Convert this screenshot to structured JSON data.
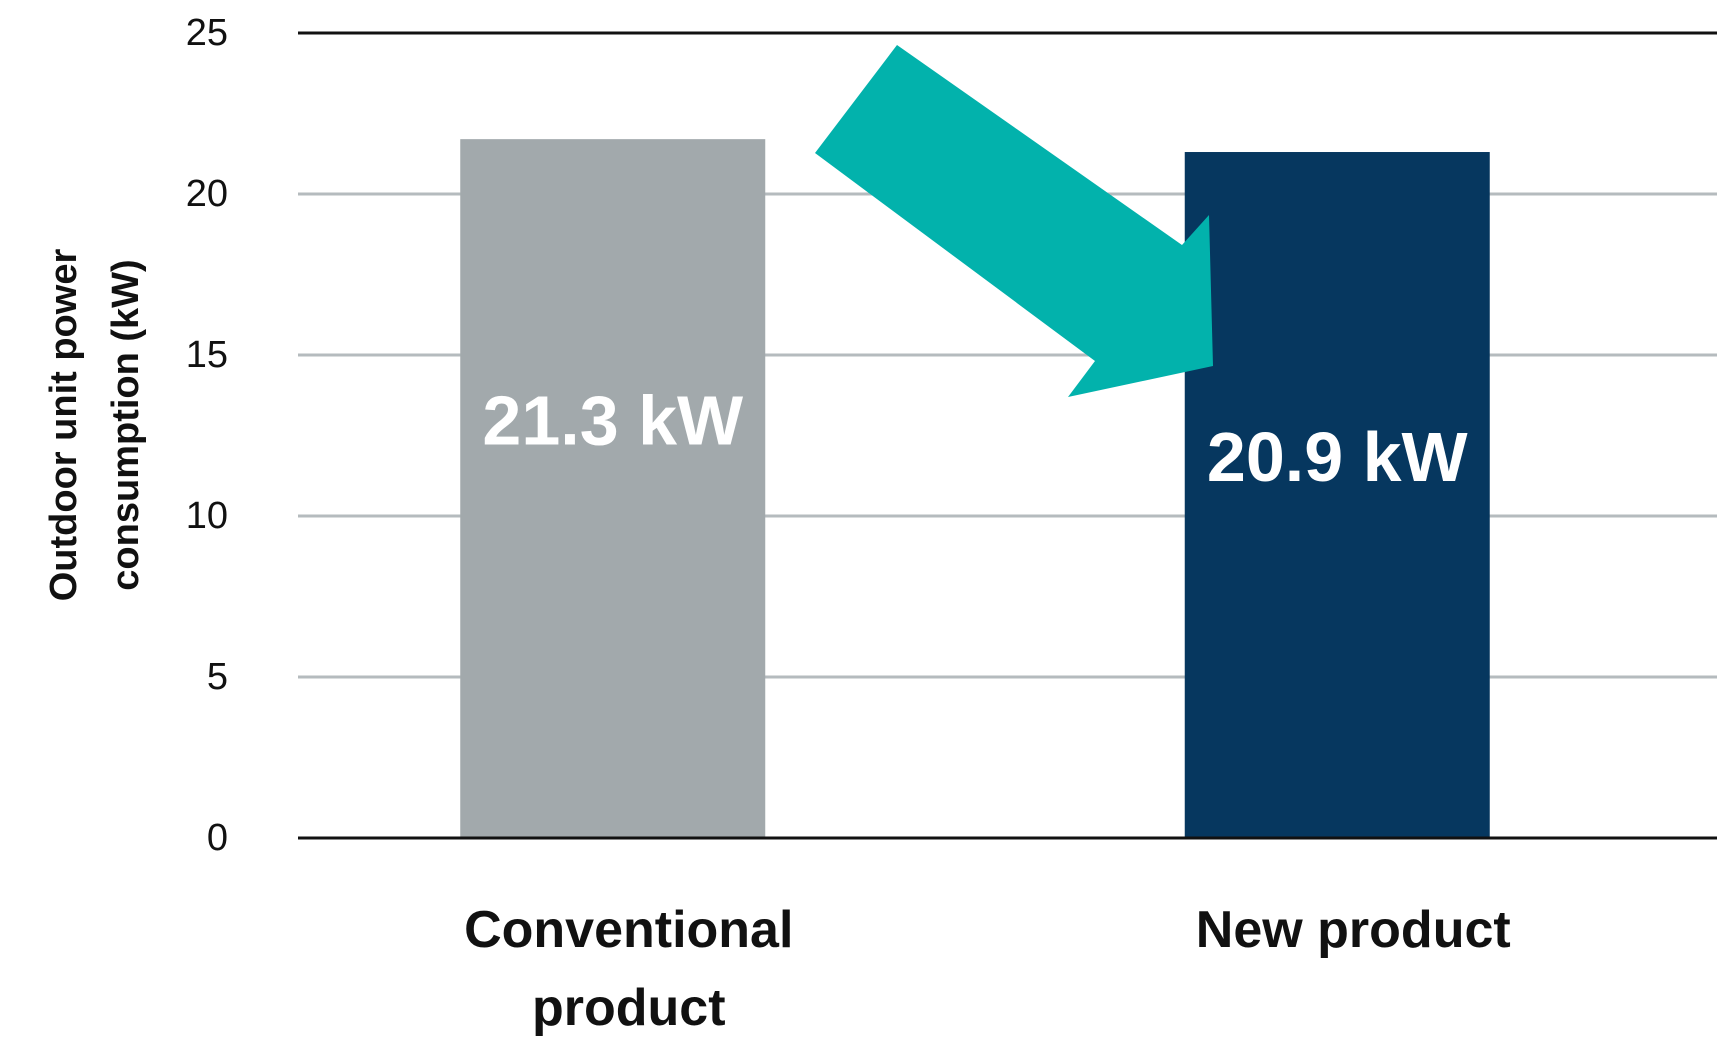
{
  "chart_data": {
    "type": "bar",
    "categories": [
      "Conventional product",
      "New product"
    ],
    "category_lines": [
      [
        "Conventional",
        "product"
      ],
      [
        "New product"
      ]
    ],
    "values": [
      21.3,
      20.9
    ],
    "data_labels": [
      "21.3 kW",
      "20.9 kW"
    ],
    "bar_colors": [
      "#a2a9ac",
      "#06375f"
    ],
    "ylabel_lines": [
      "Outdoor unit power",
      "consumption (kW)"
    ],
    "ylim": [
      0,
      25
    ],
    "yticks": [
      0,
      5,
      10,
      15,
      20,
      25
    ],
    "grid": true,
    "legend": "none",
    "arrow_color": "#02b2ac",
    "gridline_color": "#b5bbbe",
    "axis_color": "#111111"
  }
}
